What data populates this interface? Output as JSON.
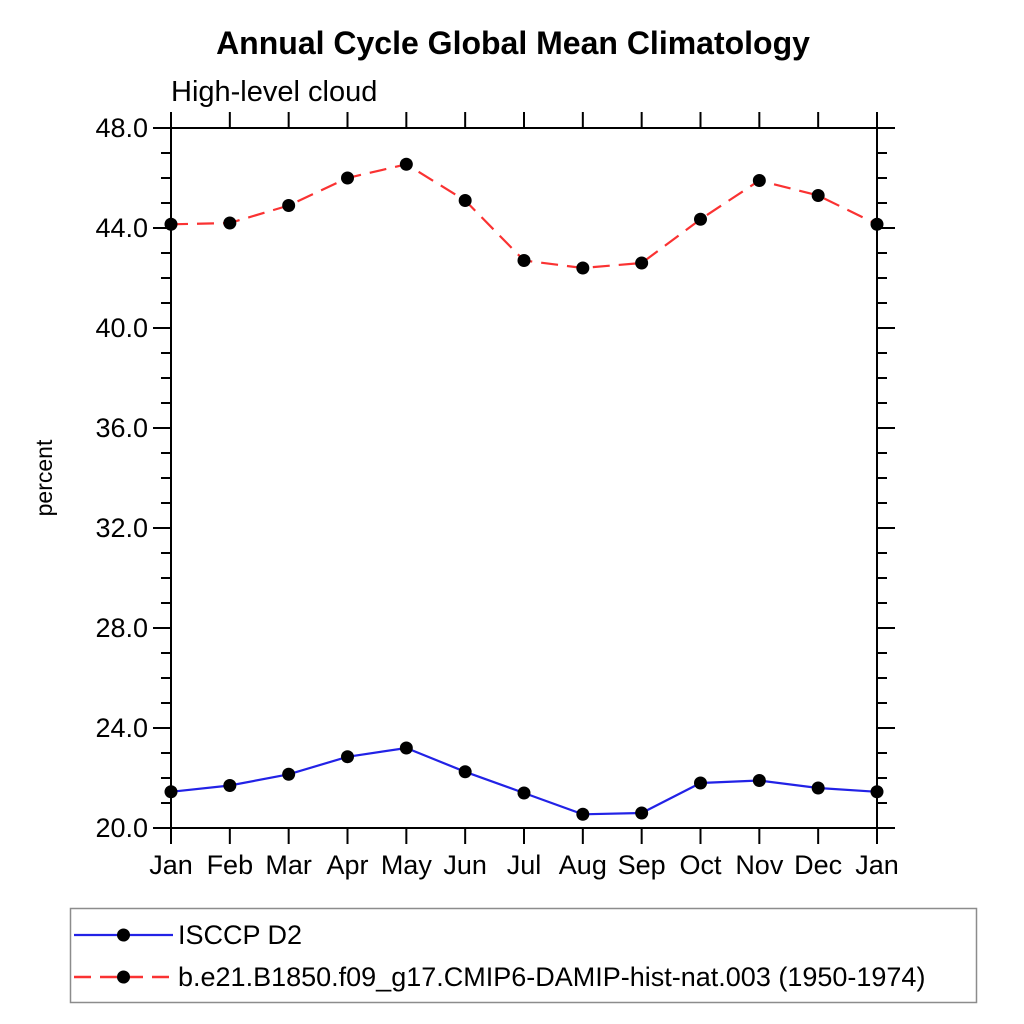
{
  "colors": {
    "background": "#ffffff",
    "axis": "#000000",
    "marker": "#000000",
    "legend_border": "#8c8c8c",
    "series_blue": "#2222e6",
    "series_red": "#fa3232"
  },
  "chart_data": {
    "type": "line",
    "title": "Annual Cycle Global Mean Climatology",
    "subtitle": "High-level cloud",
    "ylabel": "percent",
    "xlabel": "",
    "x_tick_labels": [
      "Jan",
      "Feb",
      "Mar",
      "Apr",
      "May",
      "Jun",
      "Jul",
      "Aug",
      "Sep",
      "Oct",
      "Nov",
      "Dec",
      "Jan"
    ],
    "y_major_ticks": [
      20,
      24,
      28,
      32,
      36,
      40,
      44,
      48
    ],
    "y_tick_labels": [
      "20.0",
      "24.0",
      "28.0",
      "32.0",
      "36.0",
      "40.0",
      "44.0",
      "48.0"
    ],
    "y_minor_step": 1,
    "ylim": [
      20,
      48
    ],
    "grid": false,
    "legend_position": "bottom-left-box",
    "series": [
      {
        "name": "ISCCP D2",
        "line_style": "solid",
        "color": "#2222e6",
        "marker": "circle",
        "marker_color": "#000000",
        "values": [
          21.45,
          21.7,
          22.15,
          22.85,
          23.2,
          22.25,
          21.4,
          20.55,
          20.6,
          21.8,
          21.9,
          21.6,
          21.45
        ]
      },
      {
        "name": "b.e21.B1850.f09_g17.CMIP6-DAMIP-hist-nat.003 (1950-1974)",
        "line_style": "dashed",
        "color": "#fa3232",
        "marker": "circle",
        "marker_color": "#000000",
        "values": [
          44.15,
          44.2,
          44.9,
          46.0,
          46.55,
          45.1,
          42.7,
          42.4,
          42.6,
          44.35,
          45.9,
          45.3,
          44.15
        ]
      }
    ]
  }
}
